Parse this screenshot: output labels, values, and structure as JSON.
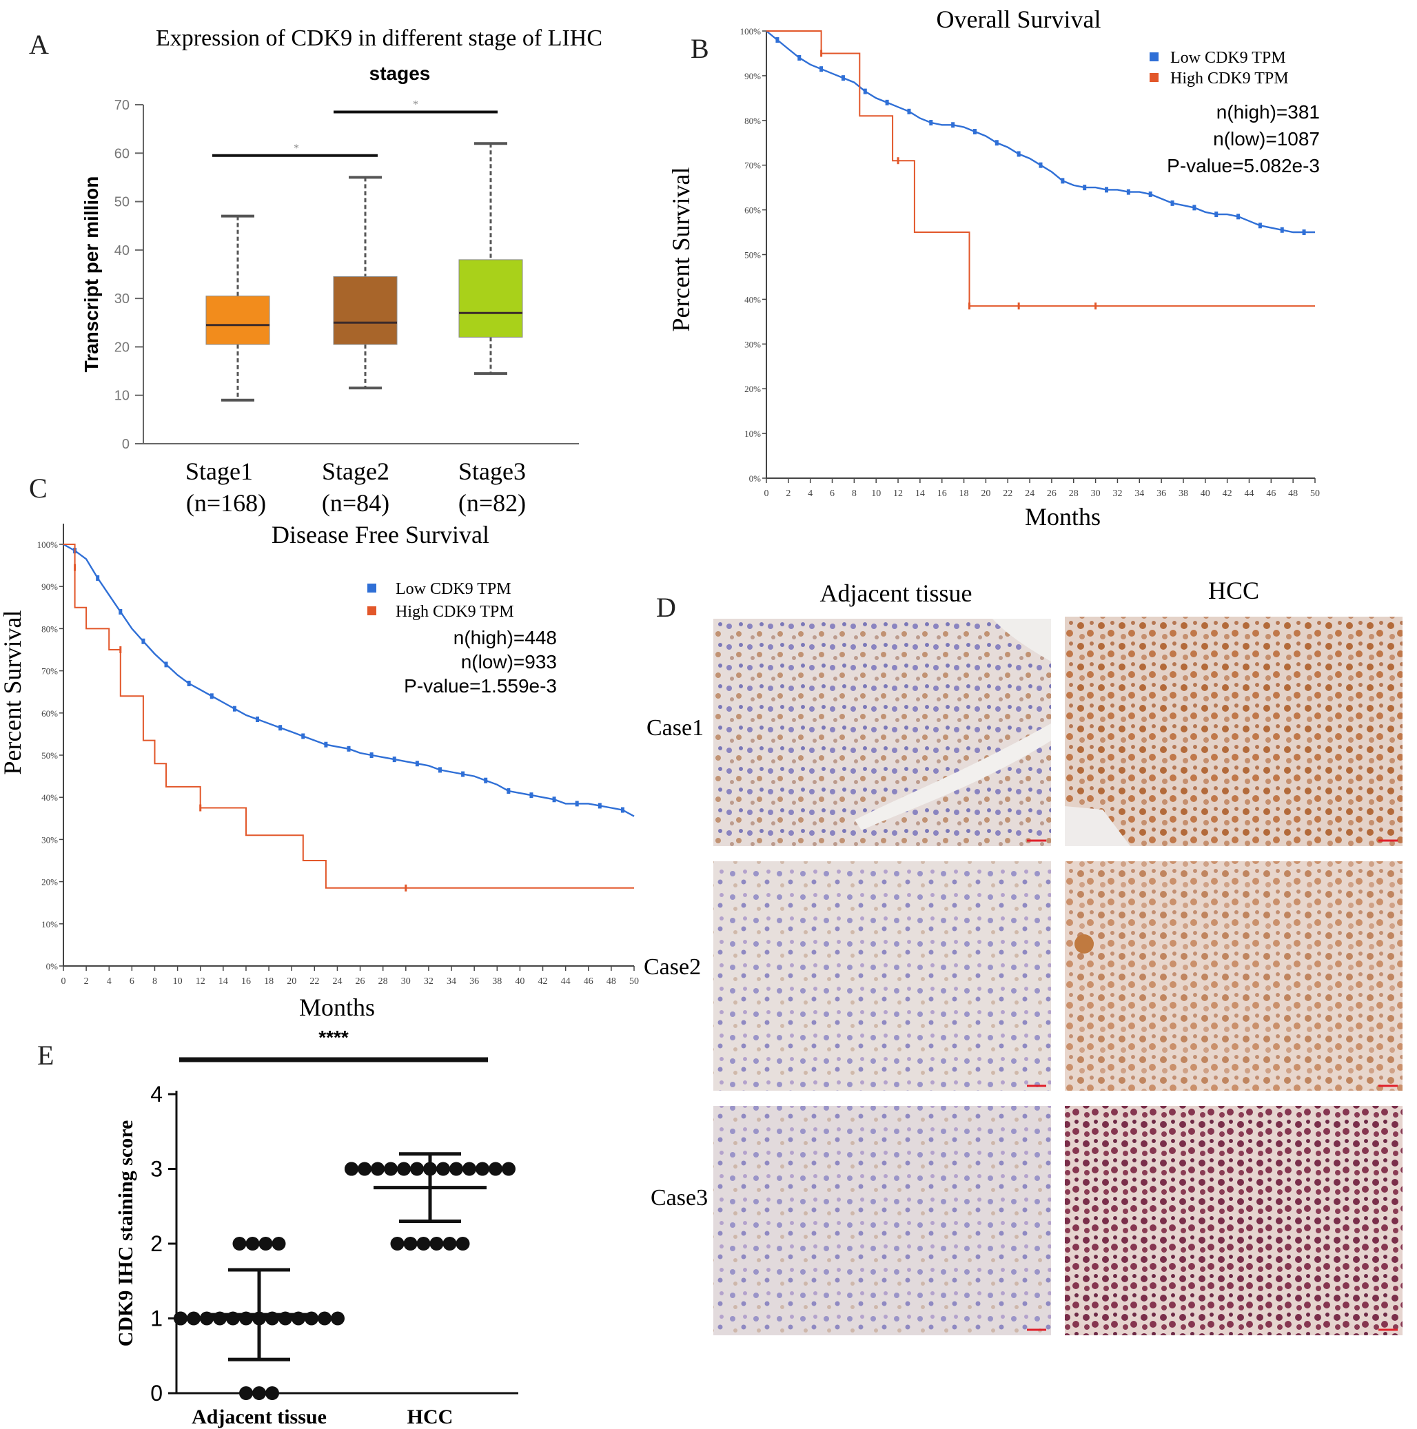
{
  "panel_labels": {
    "a": "A",
    "b": "B",
    "c": "C",
    "d": "D",
    "e": "E"
  },
  "chart_data": [
    {
      "id": "A",
      "type": "box",
      "title": "Expression of CDK9 in different stage of LIHC",
      "subtitle": "stages",
      "ylabel": "Transcript per million",
      "ylim": [
        0,
        70
      ],
      "yticks": [
        "0",
        "10",
        "20",
        "30",
        "40",
        "50",
        "60",
        "70"
      ],
      "categories": [
        "Stage1",
        "Stage2",
        "Stage3"
      ],
      "category_notes": [
        "(n=168)",
        "(n=84)",
        "(n=82)"
      ],
      "boxes": [
        {
          "min": 9,
          "q1": 20.5,
          "median": 24.5,
          "q3": 30.5,
          "max": 47,
          "color": "#f28c1c"
        },
        {
          "min": 11.5,
          "q1": 20.5,
          "median": 25,
          "q3": 34.5,
          "max": 55,
          "color": "#a8652a"
        },
        {
          "min": 14.5,
          "q1": 22,
          "median": 27,
          "q3": 38,
          "max": 62,
          "color": "#a9d11a"
        }
      ],
      "significance": [
        {
          "from": 0,
          "to": 1,
          "y": 59.5,
          "text": "*"
        },
        {
          "from": 1,
          "to": 2,
          "y": 68.5,
          "text": "*"
        }
      ]
    },
    {
      "id": "B",
      "type": "line",
      "title": "Overall Survival",
      "xlabel": "Months",
      "ylabel": "Percent Survival",
      "xlim": [
        0,
        50
      ],
      "ylim": [
        0,
        100
      ],
      "xticks": [
        "0",
        "2",
        "4",
        "6",
        "8",
        "10",
        "12",
        "14",
        "16",
        "18",
        "20",
        "22",
        "24",
        "26",
        "28",
        "30",
        "32",
        "34",
        "36",
        "38",
        "40",
        "42",
        "44",
        "46",
        "48",
        "50"
      ],
      "yticks": [
        "0%",
        "10%",
        "20%",
        "30%",
        "40%",
        "50%",
        "60%",
        "70%",
        "80%",
        "90%",
        "100%"
      ],
      "legend": [
        "Low CDK9 TPM",
        "High CDK9 TPM"
      ],
      "stats": [
        "n(high)=381",
        "n(low)=1087",
        "P-value=5.082e-3"
      ],
      "series": [
        {
          "name": "Low CDK9 TPM",
          "color": "#2f6fd6",
          "x": [
            0,
            1,
            2,
            3,
            4,
            5,
            6,
            7,
            8,
            9,
            10,
            11,
            12,
            13,
            14,
            15,
            16,
            17,
            18,
            19,
            20,
            21,
            22,
            23,
            24,
            25,
            26,
            27,
            28,
            29,
            30,
            31,
            32,
            33,
            34,
            35,
            36,
            37,
            38,
            39,
            40,
            41,
            42,
            43,
            44,
            45,
            46,
            47,
            48,
            49,
            50
          ],
          "y": [
            100,
            98,
            96,
            94,
            92.5,
            91.5,
            90.5,
            89.5,
            88.5,
            86.5,
            85,
            84,
            83,
            82,
            80.5,
            79.5,
            79,
            79,
            78.5,
            77.5,
            76.5,
            75,
            74,
            72.5,
            71.5,
            70,
            68.5,
            66.5,
            65.5,
            65,
            65,
            64.5,
            64.5,
            64,
            64,
            63.5,
            62.5,
            61.5,
            61,
            60.5,
            59.5,
            59,
            59,
            58.5,
            57.5,
            56.5,
            56,
            55.5,
            55,
            55,
            55
          ]
        },
        {
          "name": "High CDK9 TPM",
          "color": "#e2572a",
          "x": [
            0,
            5,
            5,
            8.5,
            8.5,
            11.5,
            11.5,
            13.5,
            13.5,
            18.5,
            18.5,
            50
          ],
          "y": [
            100,
            100,
            95,
            95,
            81,
            81,
            71,
            71,
            55,
            55,
            38.5,
            38.5
          ],
          "censor_x": [
            5,
            12,
            18.5,
            23,
            30
          ],
          "censor_y": [
            95,
            71,
            38.5,
            38.5,
            38.5
          ]
        }
      ]
    },
    {
      "id": "C",
      "type": "line",
      "title": "Disease Free Survival",
      "xlabel": "Months",
      "ylabel": "Percent Survival",
      "xlim": [
        0,
        50
      ],
      "ylim": [
        0,
        100
      ],
      "xticks": [
        "0",
        "2",
        "4",
        "6",
        "8",
        "10",
        "12",
        "14",
        "16",
        "18",
        "20",
        "22",
        "24",
        "26",
        "28",
        "30",
        "32",
        "34",
        "36",
        "38",
        "40",
        "42",
        "44",
        "46",
        "48",
        "50"
      ],
      "yticks": [
        "0%",
        "10%",
        "20%",
        "30%",
        "40%",
        "50%",
        "60%",
        "70%",
        "80%",
        "90%",
        "100%"
      ],
      "legend": [
        "Low CDK9 TPM",
        "High CDK9 TPM"
      ],
      "stats": [
        "n(high)=448",
        "n(low)=933",
        "P-value=1.559e-3"
      ],
      "series": [
        {
          "name": "Low CDK9 TPM",
          "color": "#2f6fd6",
          "x": [
            0,
            1,
            2,
            3,
            4,
            5,
            6,
            7,
            8,
            9,
            10,
            11,
            12,
            13,
            14,
            15,
            16,
            17,
            18,
            19,
            20,
            21,
            22,
            23,
            24,
            25,
            26,
            27,
            28,
            29,
            30,
            31,
            32,
            33,
            34,
            35,
            36,
            37,
            38,
            39,
            40,
            41,
            42,
            43,
            44,
            45,
            46,
            47,
            48,
            49,
            50
          ],
          "y": [
            100,
            98.5,
            96.5,
            92,
            88,
            84,
            80,
            77,
            74,
            71.5,
            69,
            67,
            65.5,
            64,
            62.5,
            61,
            59.5,
            58.5,
            57.5,
            56.5,
            55.5,
            54.5,
            53.5,
            52.5,
            52,
            51.5,
            50.5,
            50,
            49.5,
            49,
            48.5,
            48,
            47.5,
            46.5,
            46,
            45.5,
            45,
            44,
            43,
            41.5,
            41,
            40.5,
            40,
            39.5,
            38.5,
            38.5,
            38.5,
            38,
            37.5,
            37,
            35.5
          ]
        },
        {
          "name": "High CDK9 TPM",
          "color": "#e2572a",
          "x": [
            0,
            1,
            1,
            2,
            2,
            4,
            4,
            5,
            5,
            7,
            7,
            8,
            8,
            9,
            9,
            12,
            12,
            16,
            16,
            21,
            21,
            23,
            23,
            50
          ],
          "y": [
            100,
            100,
            85,
            85,
            80,
            80,
            75,
            75,
            64,
            64,
            53.5,
            53.5,
            48,
            48,
            42.5,
            42.5,
            37.5,
            37.5,
            31,
            31,
            25,
            25,
            18.5,
            18.5
          ],
          "censor_x": [
            1,
            5,
            12,
            30
          ],
          "censor_y": [
            94.5,
            75,
            37.5,
            18.5
          ]
        }
      ]
    },
    {
      "id": "E",
      "type": "scatter",
      "ylabel": "CDK9 IHC staining score",
      "ylim": [
        0,
        4
      ],
      "yticks": [
        "0",
        "1",
        "2",
        "3",
        "4"
      ],
      "categories": [
        "Adjacent tissue",
        "HCC"
      ],
      "significance": "****",
      "groups": [
        {
          "name": "Adjacent tissue",
          "mean": 1.05,
          "sd_low": 0.45,
          "sd_high": 1.65,
          "points": [
            {
              "y": 0,
              "n": 3
            },
            {
              "y": 1,
              "n": 14
            },
            {
              "y": 2,
              "n": 4
            }
          ]
        },
        {
          "name": "HCC",
          "mean": 2.75,
          "sd_low": 2.3,
          "sd_high": 3.2,
          "points": [
            {
              "y": 2,
              "n": 6
            },
            {
              "y": 3,
              "n": 14
            }
          ]
        }
      ]
    }
  ],
  "ihc": {
    "column_headers": [
      "Adjacent tissue",
      "HCC"
    ],
    "row_labels": [
      "Case1",
      "Case2",
      "Case3"
    ]
  }
}
